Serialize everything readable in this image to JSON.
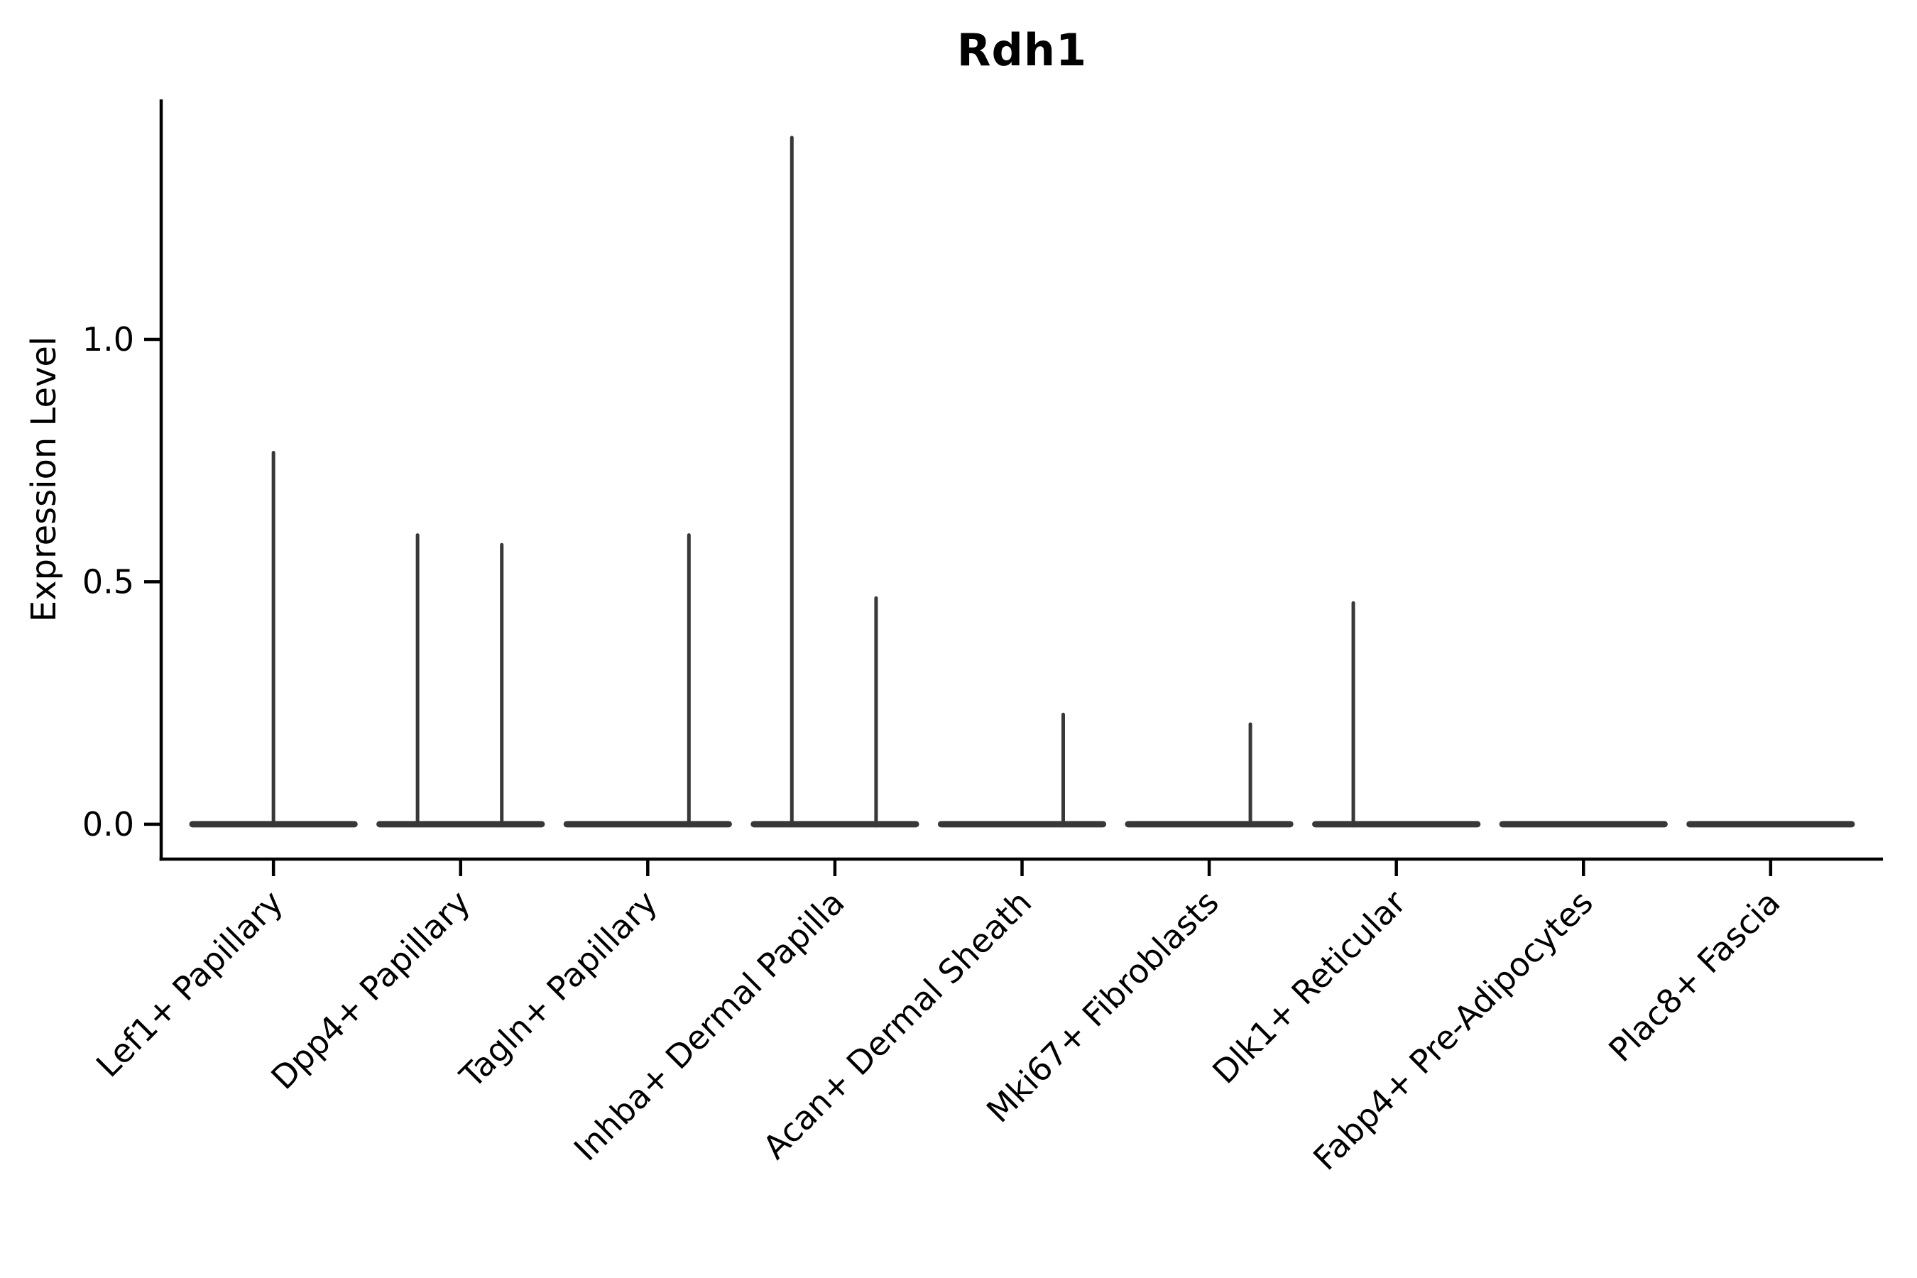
{
  "page": {
    "background": "#ffffff"
  },
  "chart_data": {
    "type": "violin",
    "title": "Rdh1",
    "ylabel": "Expression Level",
    "xlabel": "",
    "grid": false,
    "legend": false,
    "axis_color": "#000000",
    "violin_color": "#383838",
    "ylim": [
      -0.072,
      1.495
    ],
    "yticks": [
      {
        "label": "0.0",
        "value": 0.0
      },
      {
        "label": "0.5",
        "value": 0.5
      },
      {
        "label": "1.0",
        "value": 1.0
      }
    ],
    "categories": [
      "Lef1+ Papillary",
      "Dpp4+ Papillary",
      "Tagln+ Papillary",
      "Inhba+ Dermal Papilla",
      "Acan+ Dermal Sheath",
      "Mki67+ Fibroblasts",
      "Dlk1+ Reticular",
      "Fabp4+ Pre-Adipocytes",
      "Plac8+ Fascia"
    ],
    "violins": [
      {
        "category": "Lef1+ Papillary",
        "body_value": 0.0,
        "spikes": [
          {
            "offset": 0.0,
            "value": 0.77
          }
        ]
      },
      {
        "category": "Dpp4+ Papillary",
        "body_value": 0.0,
        "spikes": [
          {
            "offset": -0.23,
            "value": 0.6
          },
          {
            "offset": 0.22,
            "value": 0.58
          }
        ]
      },
      {
        "category": "Tagln+ Papillary",
        "body_value": 0.0,
        "spikes": [
          {
            "offset": 0.22,
            "value": 0.6
          }
        ]
      },
      {
        "category": "Inhba+ Dermal Papilla",
        "body_value": 0.0,
        "spikes": [
          {
            "offset": -0.23,
            "value": 1.42
          },
          {
            "offset": 0.22,
            "value": 0.47
          }
        ]
      },
      {
        "category": "Acan+ Dermal Sheath",
        "body_value": 0.0,
        "spikes": [
          {
            "offset": 0.22,
            "value": 0.23
          }
        ]
      },
      {
        "category": "Mki67+ Fibroblasts",
        "body_value": 0.0,
        "spikes": [
          {
            "offset": 0.22,
            "value": 0.21
          }
        ]
      },
      {
        "category": "Dlk1+ Reticular",
        "body_value": 0.0,
        "spikes": [
          {
            "offset": -0.23,
            "value": 0.46
          }
        ]
      },
      {
        "category": "Fabp4+ Pre-Adipocytes",
        "body_value": 0.0,
        "spikes": []
      },
      {
        "category": "Plac8+ Fascia",
        "body_value": 0.0,
        "spikes": []
      }
    ]
  }
}
